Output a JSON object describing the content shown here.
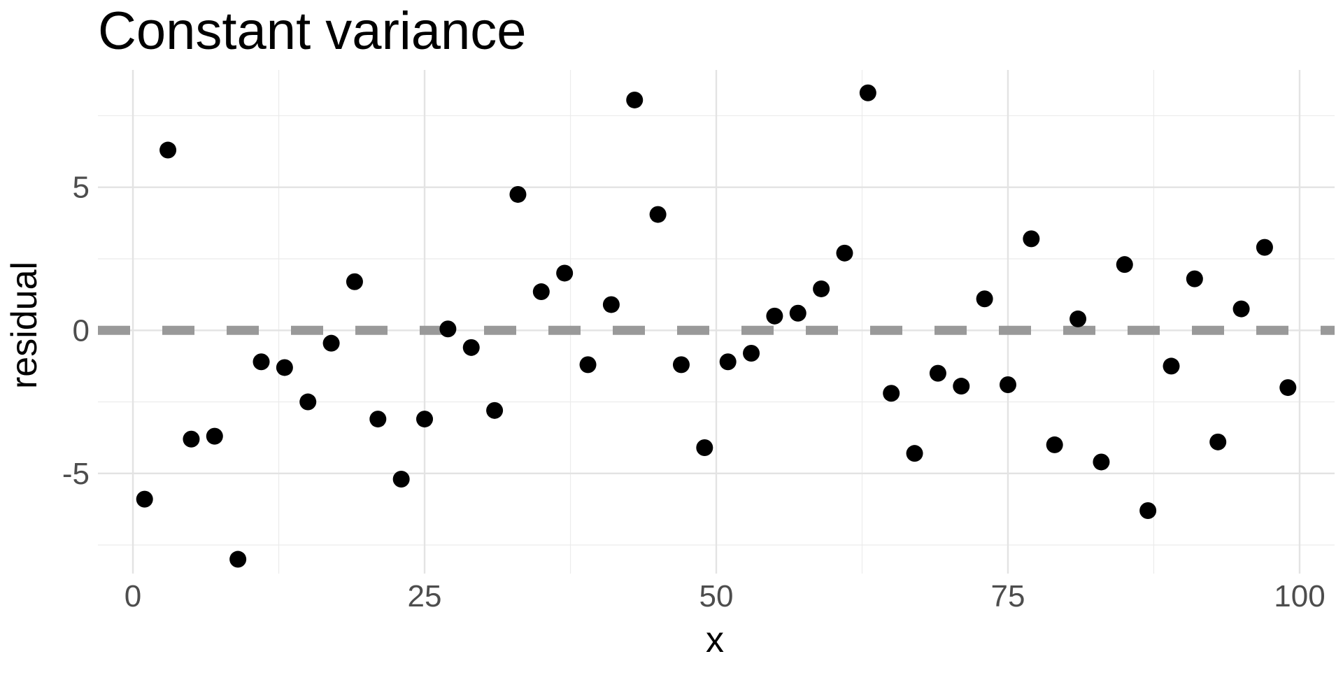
{
  "chart_data": {
    "type": "scatter",
    "title": "Constant variance",
    "xlabel": "x",
    "ylabel": "residual",
    "xlim": [
      -3,
      103
    ],
    "ylim": [
      -8.5,
      9.1
    ],
    "x_ticks": [
      0,
      25,
      50,
      75,
      100
    ],
    "x_tick_labels": [
      "0",
      "25",
      "50",
      "75",
      "100"
    ],
    "y_ticks": [
      -5,
      0,
      5
    ],
    "y_tick_labels": [
      "-5",
      "0",
      "5"
    ],
    "grid": true,
    "reference_line": {
      "y": 0,
      "style": "dashed",
      "color": "#999999"
    },
    "point_color": "#000000",
    "series": [
      {
        "x": [
          1,
          3,
          5,
          7,
          9,
          11,
          13,
          15,
          17,
          19,
          21,
          23,
          25,
          27,
          29,
          31,
          33,
          35,
          37,
          39,
          41,
          43,
          45,
          47,
          49,
          51,
          53,
          55,
          57,
          59,
          61,
          63,
          65,
          67,
          69,
          71,
          73,
          75,
          77,
          79,
          81,
          83,
          85,
          87,
          89,
          91,
          93,
          95,
          97,
          99
        ],
        "y": [
          -5.9,
          6.3,
          -3.8,
          -3.7,
          -8.0,
          -1.1,
          -1.3,
          -2.5,
          -0.45,
          1.7,
          -3.1,
          -5.2,
          -3.1,
          0.05,
          -0.6,
          -2.8,
          4.75,
          1.35,
          2.0,
          -1.2,
          0.9,
          8.05,
          4.05,
          -1.2,
          -4.1,
          -1.1,
          -0.8,
          0.5,
          0.6,
          1.45,
          2.7,
          8.3,
          -2.2,
          -4.3,
          -1.5,
          -1.95,
          1.1,
          -1.9,
          3.2,
          -4.0,
          0.4,
          -4.6,
          2.3,
          -6.3,
          -1.25,
          1.8,
          -3.9,
          0.75,
          2.9,
          -2.0
        ]
      }
    ]
  }
}
